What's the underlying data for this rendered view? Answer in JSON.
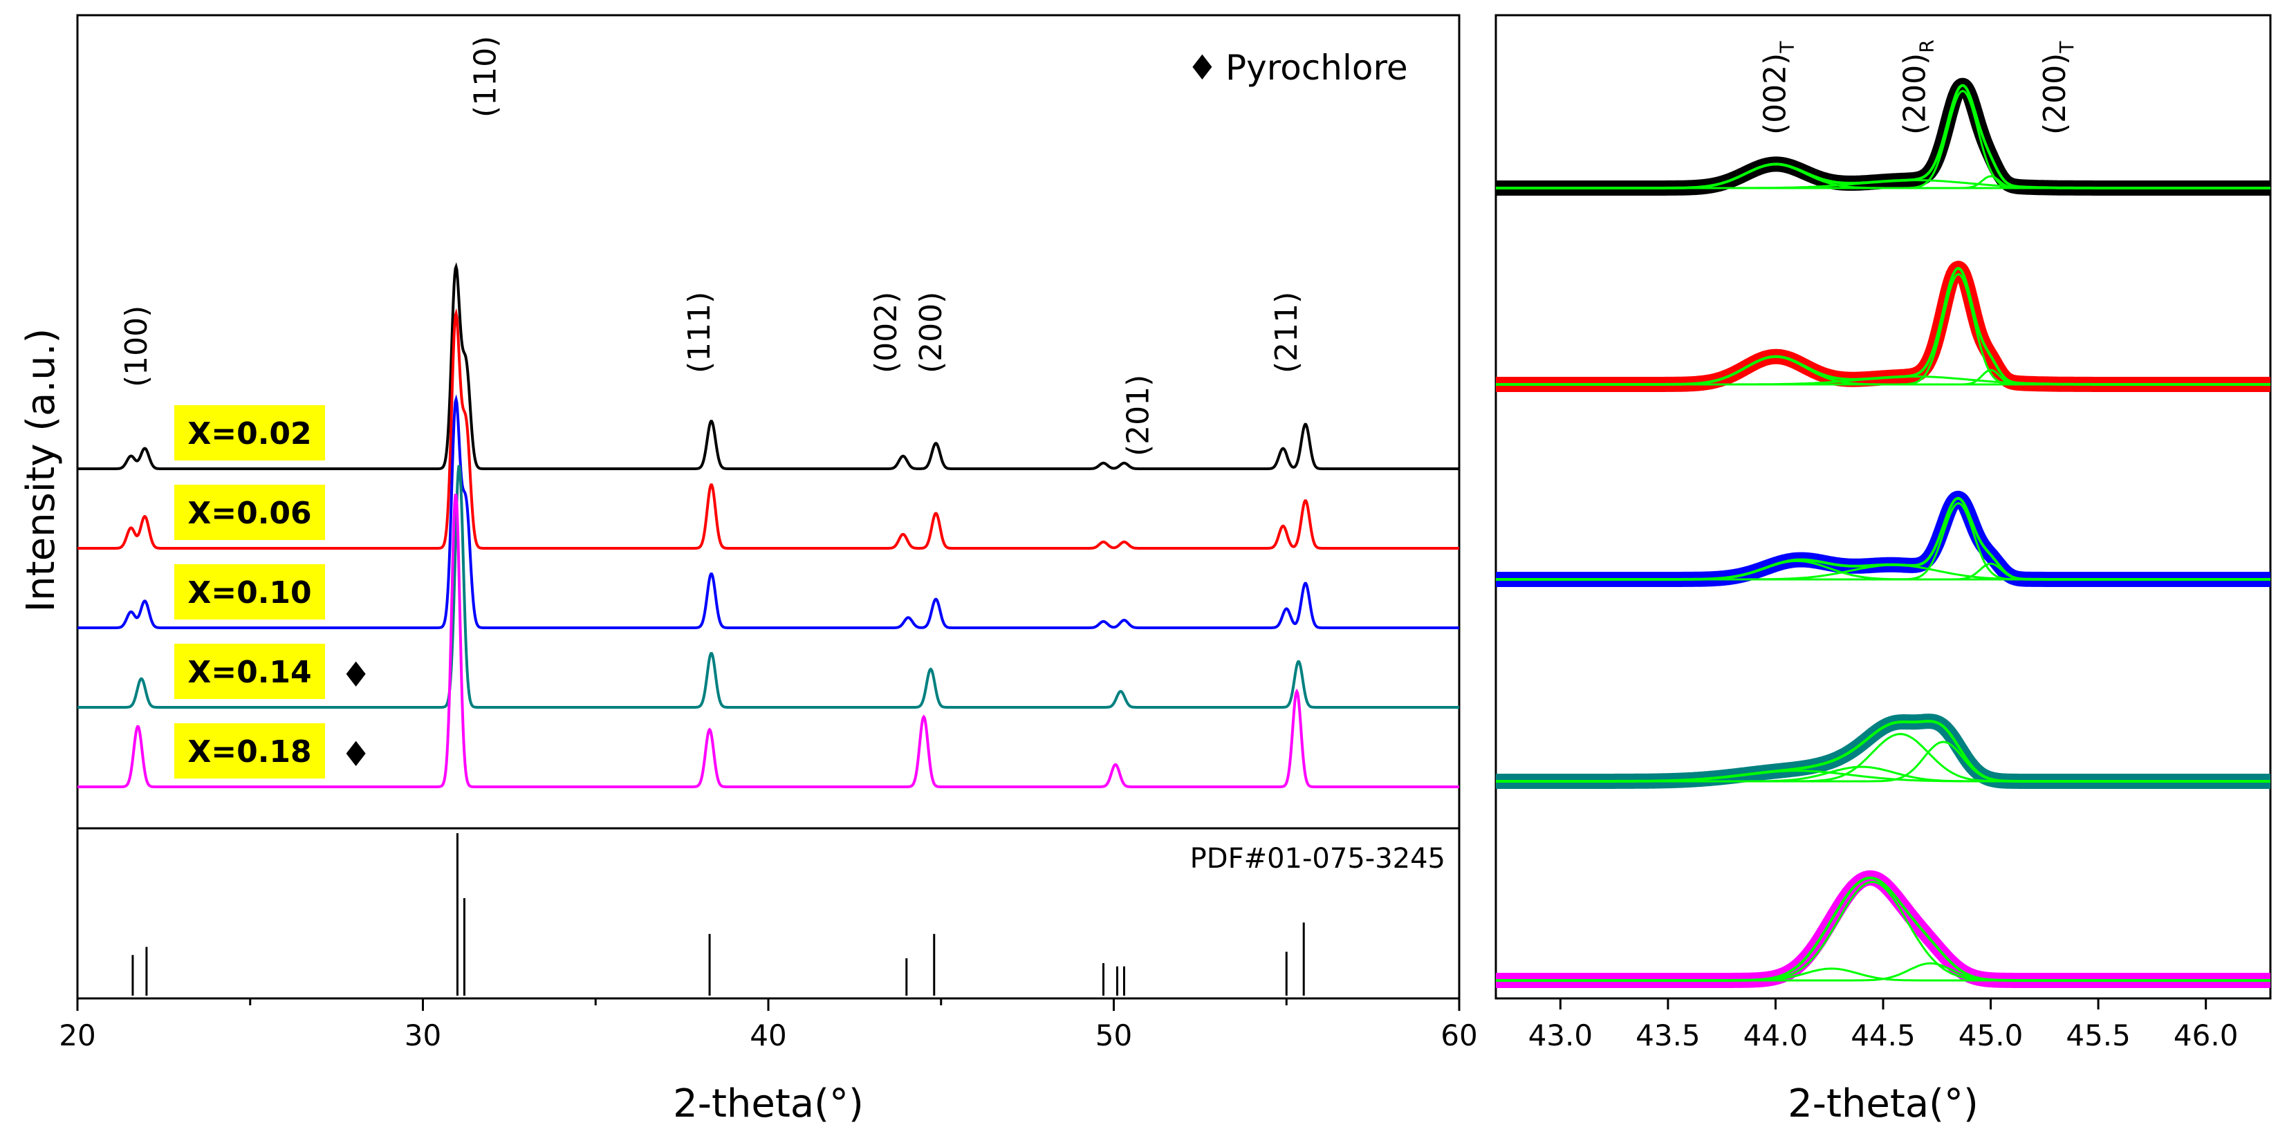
{
  "chart_data": [
    {
      "type": "line",
      "xlabel": "2-theta(°)",
      "ylabel": "Intensity (a.u.)",
      "xlim": [
        20,
        60
      ],
      "xticks": [
        20,
        30,
        40,
        50,
        60
      ],
      "grid": false,
      "legend": {
        "position": "top-right",
        "symbol": "♦",
        "label": "Pyrochlore"
      },
      "series": [
        {
          "name": "X=0.02",
          "color": "#000000",
          "offset": 4,
          "peaks": [
            [
              21.55,
              0.2
            ],
            [
              21.95,
              0.32
            ],
            [
              30.95,
              3.1
            ],
            [
              31.25,
              1.6
            ],
            [
              38.35,
              0.75
            ],
            [
              43.9,
              0.2
            ],
            [
              44.85,
              0.4
            ],
            [
              49.7,
              0.09
            ],
            [
              50.3,
              0.09
            ],
            [
              54.9,
              0.32
            ],
            [
              55.55,
              0.7
            ]
          ]
        },
        {
          "name": "X=0.06",
          "color": "#ff0000",
          "offset": 3,
          "peaks": [
            [
              21.55,
              0.32
            ],
            [
              21.95,
              0.5
            ],
            [
              30.95,
              3.6
            ],
            [
              31.25,
              1.9
            ],
            [
              38.35,
              1.0
            ],
            [
              43.9,
              0.22
            ],
            [
              44.85,
              0.55
            ],
            [
              49.7,
              0.1
            ],
            [
              50.3,
              0.1
            ],
            [
              54.9,
              0.35
            ],
            [
              55.55,
              0.75
            ]
          ]
        },
        {
          "name": "X=0.10",
          "color": "#0000ff",
          "offset": 2,
          "peaks": [
            [
              21.55,
              0.25
            ],
            [
              21.95,
              0.42
            ],
            [
              30.95,
              3.5
            ],
            [
              31.25,
              1.9
            ],
            [
              38.35,
              0.85
            ],
            [
              44.05,
              0.16
            ],
            [
              44.85,
              0.45
            ],
            [
              49.7,
              0.1
            ],
            [
              50.3,
              0.12
            ],
            [
              55.0,
              0.3
            ],
            [
              55.55,
              0.7
            ]
          ]
        },
        {
          "name": "X=0.14",
          "color": "#008080",
          "offset": 1,
          "peaks": [
            [
              21.85,
              0.45
            ],
            [
              31.05,
              3.8
            ],
            [
              38.35,
              0.85
            ],
            [
              44.7,
              0.6
            ],
            [
              50.2,
              0.25
            ],
            [
              55.35,
              0.72
            ]
          ]
        },
        {
          "name": "X=0.18",
          "color": "#ff00ff",
          "offset": 0,
          "peaks": [
            [
              21.75,
              0.95
            ],
            [
              30.95,
              4.6
            ],
            [
              38.3,
              0.9
            ],
            [
              44.5,
              1.1
            ],
            [
              50.05,
              0.35
            ],
            [
              55.3,
              1.5
            ]
          ]
        }
      ],
      "sample_labels": [
        "X=0.02",
        "X=0.06",
        "X=0.10",
        "X=0.14",
        "X=0.18"
      ],
      "pyrochlore_markers": [
        {
          "series": "X=0.14",
          "x": 27.9
        },
        {
          "series": "X=0.18",
          "x": 27.9
        }
      ],
      "peak_labels": [
        {
          "text": "(100)",
          "x": 22.0
        },
        {
          "text": "(110)",
          "x": 32.1
        },
        {
          "text": "(111)",
          "x": 38.3
        },
        {
          "text": "(002)",
          "x": 43.7
        },
        {
          "text": "(200)",
          "x": 45.0
        },
        {
          "text": "(201)",
          "x": 51.0
        },
        {
          "text": "(211)",
          "x": 55.3
        }
      ],
      "reference": {
        "label": "PDF#01-075-3245",
        "lines": [
          [
            21.6,
            0.25
          ],
          [
            22.0,
            0.3
          ],
          [
            31.0,
            1.0
          ],
          [
            31.2,
            0.6
          ],
          [
            38.3,
            0.38
          ],
          [
            44.0,
            0.23
          ],
          [
            44.8,
            0.38
          ],
          [
            49.7,
            0.2
          ],
          [
            50.1,
            0.18
          ],
          [
            50.3,
            0.18
          ],
          [
            55.0,
            0.27
          ],
          [
            55.5,
            0.45
          ]
        ]
      }
    },
    {
      "type": "line",
      "xlabel": "2-theta(°)",
      "xlim": [
        42.7,
        46.3
      ],
      "xticks": [
        "43.0",
        "43.5",
        "44.0",
        "44.5",
        "45.0",
        "45.5",
        "46.0"
      ],
      "grid": false,
      "fit_color": "#00ff00",
      "peak_labels": [
        {
          "text": "(002)",
          "sub": "T",
          "x": 44.0
        },
        {
          "text": "(200)",
          "sub": "R",
          "x": 44.65
        },
        {
          "text": "(200)",
          "sub": "T",
          "x": 45.3
        }
      ],
      "series": [
        {
          "name": "X=0.02",
          "color": "#000000",
          "components": [
            [
              44.0,
              0.9,
              0.14
            ],
            [
              44.65,
              0.3,
              0.25
            ],
            [
              44.87,
              3.7,
              0.07
            ],
            [
              45.0,
              0.45,
              0.04
            ]
          ]
        },
        {
          "name": "X=0.06",
          "color": "#ff0000",
          "components": [
            [
              44.0,
              1.05,
              0.14
            ],
            [
              44.65,
              0.3,
              0.25
            ],
            [
              44.85,
              4.2,
              0.07
            ],
            [
              45.0,
              0.55,
              0.04
            ]
          ]
        },
        {
          "name": "X=0.10",
          "color": "#0000ff",
          "components": [
            [
              44.1,
              0.7,
              0.15
            ],
            [
              44.55,
              0.55,
              0.2
            ],
            [
              44.85,
              2.9,
              0.07
            ],
            [
              45.0,
              0.6,
              0.05
            ]
          ]
        },
        {
          "name": "X=0.14",
          "color": "#008080",
          "components": [
            [
              44.1,
              0.4,
              0.25
            ],
            [
              44.4,
              0.55,
              0.15
            ],
            [
              44.58,
              1.8,
              0.13
            ],
            [
              44.78,
              1.5,
              0.09
            ]
          ]
        },
        {
          "name": "X=0.18",
          "color": "#ff00ff",
          "components": [
            [
              44.26,
              0.45,
              0.12
            ],
            [
              44.45,
              3.75,
              0.16
            ],
            [
              44.72,
              0.65,
              0.1
            ]
          ]
        }
      ]
    }
  ]
}
